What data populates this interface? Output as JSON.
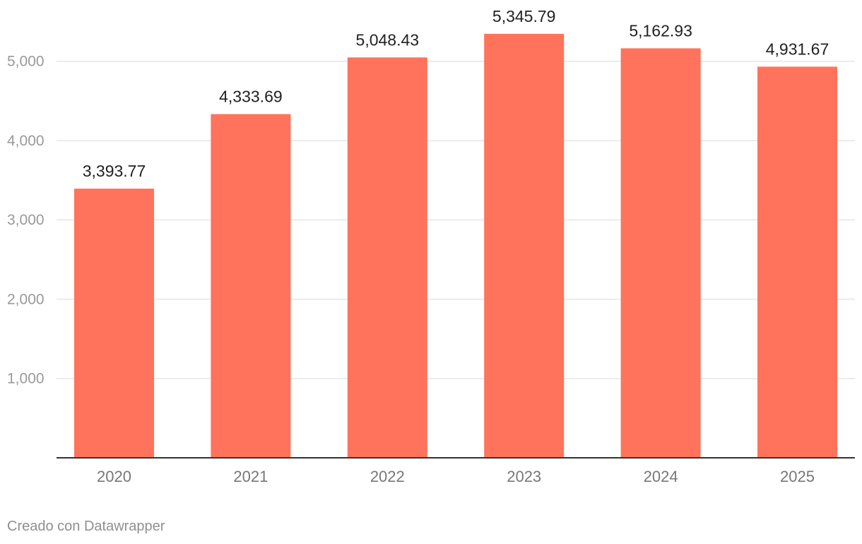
{
  "chart_data": {
    "type": "bar",
    "title": "",
    "xlabel": "",
    "ylabel": "",
    "categories": [
      "2020",
      "2021",
      "2022",
      "2023",
      "2024",
      "2025"
    ],
    "values": [
      3393.77,
      4333.69,
      5048.43,
      5345.79,
      5162.93,
      4931.67
    ],
    "value_labels": [
      "3,393.77",
      "4,333.69",
      "5,048.43",
      "5,345.79",
      "5,162.93",
      "4,931.67"
    ],
    "y_ticks": [
      1000,
      2000,
      3000,
      4000,
      5000
    ],
    "y_tick_labels": [
      "1,000",
      "2,000",
      "3,000",
      "4,000",
      "5,000"
    ],
    "ylim": [
      0,
      5345.79
    ],
    "grid": true,
    "legend": "none"
  },
  "colors": {
    "bar": "#ff735c",
    "grid": "#e6e6e6",
    "axis": "#333333",
    "tick_text": "#999999",
    "category_text": "#777777",
    "value_text": "#222222"
  },
  "footer": {
    "credit": "Creado con Datawrapper"
  }
}
